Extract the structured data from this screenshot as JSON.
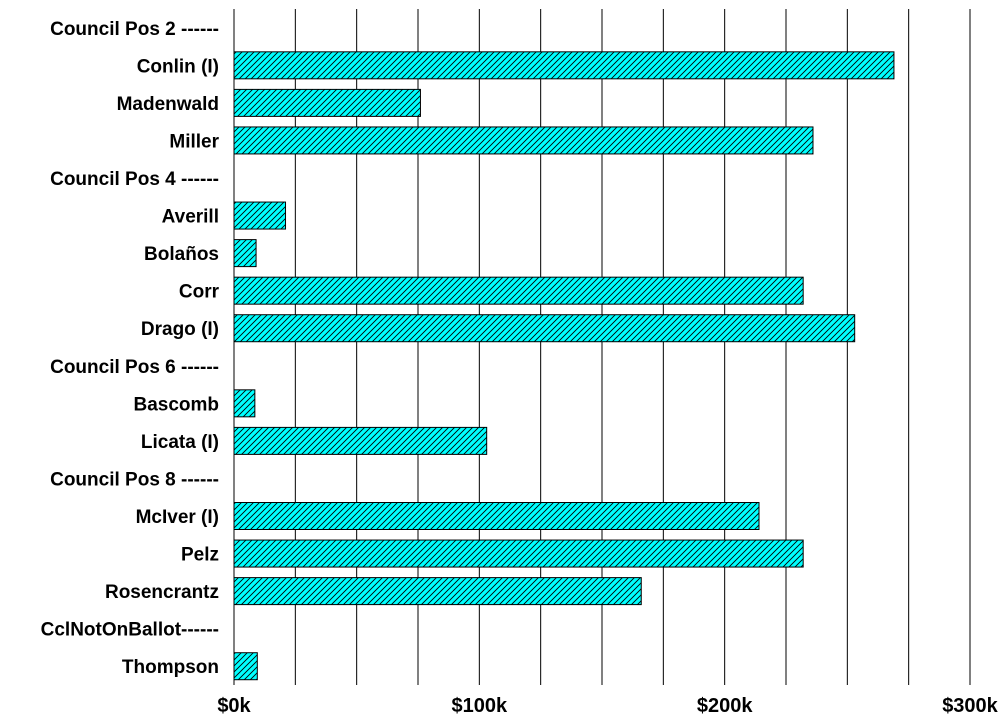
{
  "chart_data": {
    "type": "bar",
    "orientation": "horizontal",
    "categories": [
      "Council Pos 2 ------",
      "Conlin (I)",
      "Madenwald",
      "Miller",
      "Council Pos 4 ------",
      "Averill",
      "Bolaños",
      "Corr",
      "Drago (I)",
      "Council Pos 6 ------",
      "Bascomb",
      "Licata (I)",
      "Council Pos 8 ------",
      "McIver (I)",
      "Pelz",
      "Rosencrantz",
      "CclNotOnBallot------",
      "Thompson"
    ],
    "values": [
      0,
      269000,
      76000,
      236000,
      0,
      21000,
      9000,
      232000,
      253000,
      0,
      8500,
      103000,
      0,
      214000,
      232000,
      166000,
      0,
      9500
    ],
    "xlim": [
      0,
      300000
    ],
    "x_ticks": [
      0,
      100000,
      200000,
      300000
    ],
    "x_tick_labels": [
      "$0k",
      "$100k",
      "$200k",
      "$300k"
    ],
    "grid": "vertical",
    "grid_interval": 25000,
    "bar_color": "#00FFFF",
    "bar_hatch": "diagonal",
    "legend": "none"
  }
}
